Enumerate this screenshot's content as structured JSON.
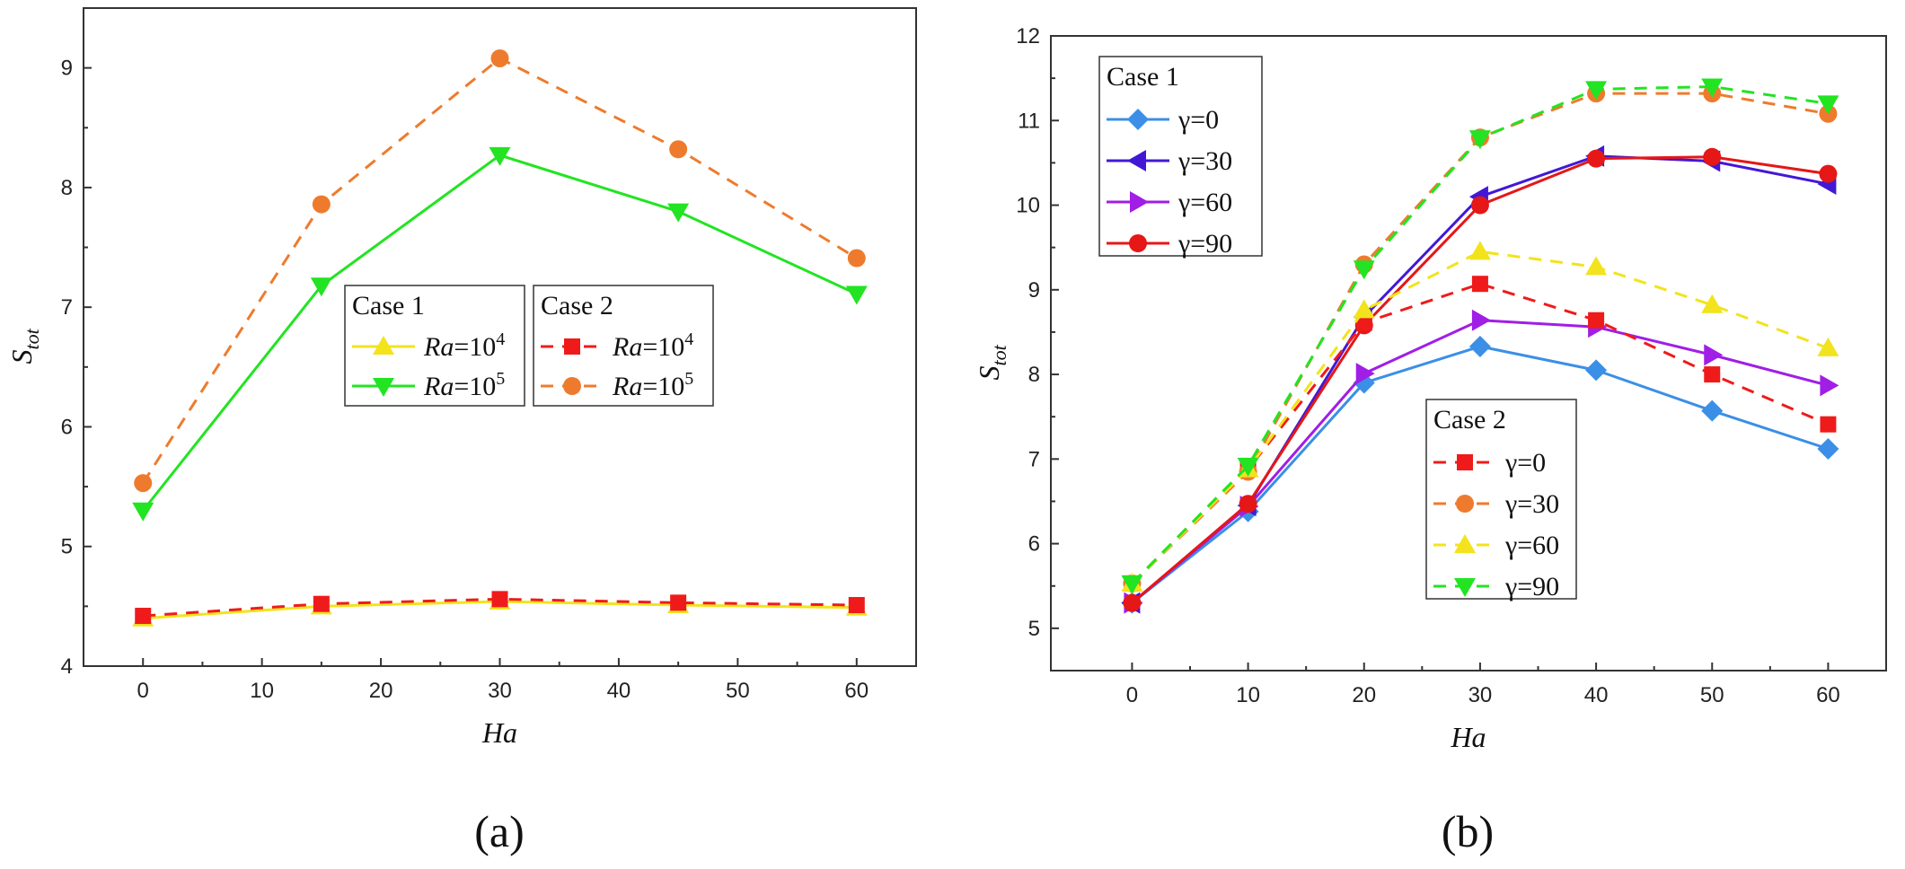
{
  "chart_data": [
    {
      "type": "line",
      "panel_label": "(a)",
      "xlabel": "Ha",
      "ylabel": "S",
      "ylabel_sub": "tot",
      "xlim": [
        -5,
        65
      ],
      "ylim": [
        4,
        9.5
      ],
      "xticks": [
        0,
        10,
        20,
        30,
        40,
        50,
        60
      ],
      "yticks": [
        4,
        5,
        6,
        7,
        8,
        9
      ],
      "x": [
        0,
        15,
        30,
        45,
        60
      ],
      "legend_groups": [
        {
          "title": "Case 1",
          "items": [
            0,
            1
          ]
        },
        {
          "title": "Case 2",
          "items": [
            2,
            3
          ]
        }
      ],
      "series": [
        {
          "name": "Ra=10^4",
          "label_main": "Ra",
          "label_sup": "4",
          "group": "Case 1",
          "color": "#f2e31c",
          "marker": "triangle-up",
          "dash": false,
          "values": [
            4.4,
            4.5,
            4.54,
            4.51,
            4.49
          ]
        },
        {
          "name": "Ra=10^5",
          "label_main": "Ra",
          "label_sup": "5",
          "group": "Case 1",
          "color": "#22e422",
          "marker": "triangle-down",
          "dash": false,
          "values": [
            5.3,
            7.18,
            8.27,
            7.8,
            7.11
          ]
        },
        {
          "name": "Ra=10^4",
          "label_main": "Ra",
          "label_sup": "4",
          "group": "Case 2",
          "color": "#ef1b1b",
          "marker": "square",
          "dash": true,
          "values": [
            4.42,
            4.52,
            4.56,
            4.53,
            4.51
          ]
        },
        {
          "name": "Ra=10^5",
          "label_main": "Ra",
          "label_sup": "5",
          "group": "Case 2",
          "color": "#ee7b2d",
          "marker": "circle",
          "dash": true,
          "values": [
            5.53,
            7.86,
            9.08,
            8.32,
            7.41
          ]
        }
      ]
    },
    {
      "type": "line",
      "panel_label": "(b)",
      "xlabel": "Ha",
      "ylabel": "S",
      "ylabel_sub": "tot",
      "xlim": [
        -7,
        65
      ],
      "ylim": [
        4.5,
        12
      ],
      "xticks": [
        0,
        10,
        20,
        30,
        40,
        50,
        60
      ],
      "yticks": [
        5,
        6,
        7,
        8,
        9,
        10,
        11,
        12
      ],
      "x": [
        0,
        10,
        20,
        30,
        40,
        50,
        60
      ],
      "legend_groups": [
        {
          "title": "Case 1",
          "items": [
            0,
            1,
            2,
            3
          ]
        },
        {
          "title": "Case 2",
          "items": [
            4,
            5,
            6,
            7
          ]
        }
      ],
      "series": [
        {
          "name": "γ=0",
          "group": "Case 1",
          "color": "#3b8fe6",
          "marker": "diamond",
          "dash": false,
          "values": [
            5.3,
            6.38,
            7.9,
            8.33,
            8.05,
            7.57,
            7.12
          ]
        },
        {
          "name": "γ=30",
          "group": "Case 1",
          "color": "#4218d6",
          "marker": "triangle-left",
          "dash": false,
          "values": [
            5.3,
            6.45,
            8.68,
            10.1,
            10.58,
            10.52,
            10.25
          ]
        },
        {
          "name": "γ=60",
          "group": "Case 1",
          "color": "#a01ee6",
          "marker": "triangle-right",
          "dash": false,
          "values": [
            5.3,
            6.44,
            8.01,
            8.64,
            8.56,
            8.23,
            7.87
          ]
        },
        {
          "name": "γ=90",
          "group": "Case 1",
          "color": "#e51717",
          "marker": "circle",
          "dash": false,
          "values": [
            5.3,
            6.47,
            8.58,
            10.0,
            10.55,
            10.57,
            10.37
          ]
        },
        {
          "name": "γ=0",
          "group": "Case 2",
          "color": "#ef1b1b",
          "marker": "square",
          "dash": true,
          "values": [
            5.53,
            6.88,
            8.61,
            9.07,
            8.64,
            8.0,
            7.41
          ]
        },
        {
          "name": "γ=30",
          "group": "Case 2",
          "color": "#ee7b2d",
          "marker": "circle",
          "dash": true,
          "values": [
            5.53,
            6.85,
            9.3,
            10.8,
            11.32,
            11.32,
            11.08
          ]
        },
        {
          "name": "γ=60",
          "group": "Case 2",
          "color": "#f2e31c",
          "marker": "triangle-up",
          "dash": true,
          "values": [
            5.53,
            6.88,
            8.76,
            9.45,
            9.27,
            8.82,
            8.31
          ]
        },
        {
          "name": "γ=90",
          "group": "Case 2",
          "color": "#22e422",
          "marker": "triangle-down",
          "dash": true,
          "values": [
            5.53,
            6.92,
            9.25,
            10.79,
            11.37,
            11.4,
            11.2
          ]
        }
      ]
    }
  ]
}
